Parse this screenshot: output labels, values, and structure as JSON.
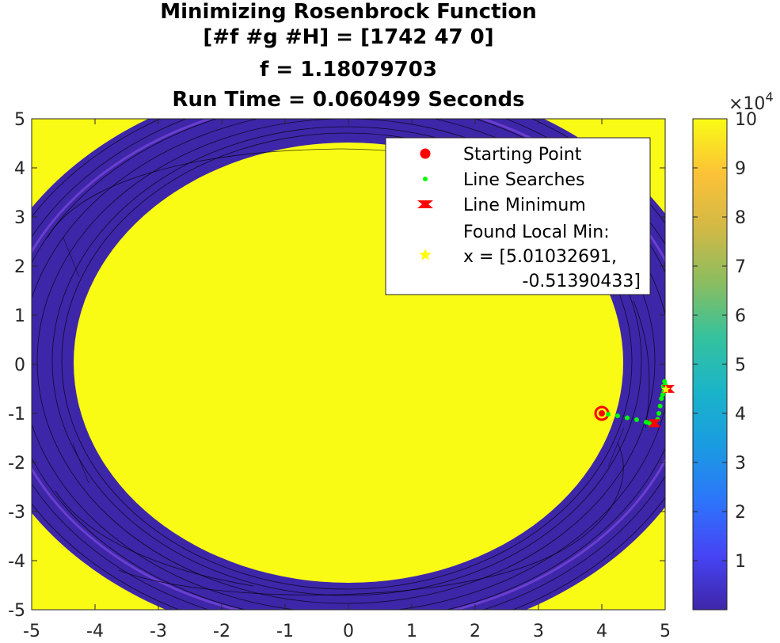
{
  "chart_data": {
    "type": "contour",
    "title": [
      "Minimizing Rosenbrock Function",
      "[#f #g #H] = [1742 47 0]",
      "f = 1.18079703",
      "Run Time = 0.060499 Seconds"
    ],
    "xlim": [
      -5,
      5
    ],
    "ylim": [
      -5,
      5
    ],
    "x_ticks": [
      "-5",
      "-4",
      "-3",
      "-2",
      "-1",
      "0",
      "1",
      "2",
      "3",
      "4",
      "5"
    ],
    "y_ticks": [
      "5",
      "4",
      "3",
      "2",
      "1",
      "0",
      "-1",
      "-2",
      "-3",
      "-4",
      "-5"
    ],
    "colorbar": {
      "range": [
        0,
        10
      ],
      "ticks": [
        "10",
        "9",
        "8",
        "7",
        "6",
        "5",
        "4",
        "3",
        "2",
        "1"
      ],
      "multiplier_base": "×10",
      "multiplier_exp": "4",
      "colors": [
        "#3e26a8",
        "#4644f5",
        "#2d75fb",
        "#1a9be1",
        "#1ab4c9",
        "#35c29d",
        "#8bbd5f",
        "#d2b945",
        "#fcc237",
        "#f9fb15"
      ]
    },
    "legend": {
      "placement": "top-right",
      "entries": [
        {
          "label": "Starting Point",
          "marker": "circle",
          "color": "#ff0000"
        },
        {
          "label": "Line Searches",
          "marker": "dot",
          "color": "#00ff00"
        },
        {
          "label": "Line Minimum",
          "marker": "hexagram",
          "color": "#ff0000"
        },
        {
          "label": "Found Local Min:",
          "label2": "x = [5.01032691,",
          "label3": "-0.51390433]",
          "marker": "star",
          "color": "#ffff00"
        }
      ]
    },
    "starting_point": {
      "x": 4.0,
      "y": -1.0
    },
    "line_searches": [
      {
        "x": 4.1,
        "y": -1.02
      },
      {
        "x": 4.25,
        "y": -1.05
      },
      {
        "x": 4.4,
        "y": -1.09
      },
      {
        "x": 4.55,
        "y": -1.13
      },
      {
        "x": 4.7,
        "y": -1.18
      },
      {
        "x": 4.75,
        "y": -1.2
      },
      {
        "x": 4.82,
        "y": -1.2
      },
      {
        "x": 4.88,
        "y": -1.12
      },
      {
        "x": 4.9,
        "y": -1.0
      },
      {
        "x": 4.92,
        "y": -0.85
      },
      {
        "x": 4.94,
        "y": -0.7
      },
      {
        "x": 4.96,
        "y": -0.62
      },
      {
        "x": 4.98,
        "y": -0.55
      },
      {
        "x": 4.97,
        "y": -0.45
      },
      {
        "x": 4.99,
        "y": -0.35
      },
      {
        "x": 5.0,
        "y": -0.42
      }
    ],
    "line_minima": [
      {
        "x": 4.83,
        "y": -1.2
      },
      {
        "x": 5.05,
        "y": -0.5
      }
    ],
    "found_local_min": {
      "x": 5.01032691,
      "y": -0.51390433
    }
  }
}
